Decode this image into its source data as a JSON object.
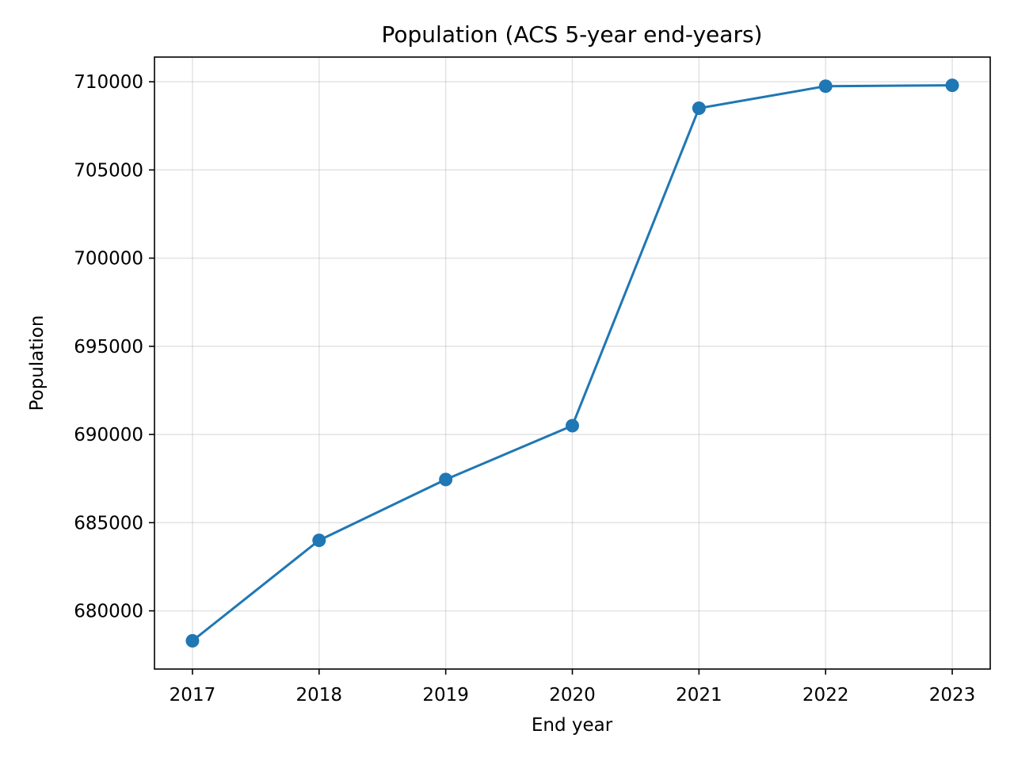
{
  "chart_data": {
    "type": "line",
    "title": "Population (ACS 5-year end-years)",
    "xlabel": "End year",
    "ylabel": "Population",
    "x": [
      2017,
      2018,
      2019,
      2020,
      2021,
      2022,
      2023
    ],
    "x_tick_labels": [
      "2017",
      "2018",
      "2019",
      "2020",
      "2021",
      "2022",
      "2023"
    ],
    "series": [
      {
        "values": [
          678300,
          684000,
          687450,
          690500,
          708500,
          709750,
          709800
        ],
        "color": "#1f77b4",
        "marker": "circle"
      }
    ],
    "ylim": [
      676700,
      711400
    ],
    "xlim": [
      2016.7,
      2023.3
    ],
    "y_ticks": [
      680000,
      685000,
      690000,
      695000,
      700000,
      705000,
      710000
    ],
    "y_tick_labels": [
      "680000",
      "685000",
      "690000",
      "695000",
      "700000",
      "705000",
      "710000"
    ],
    "grid": true,
    "legend": "none"
  }
}
